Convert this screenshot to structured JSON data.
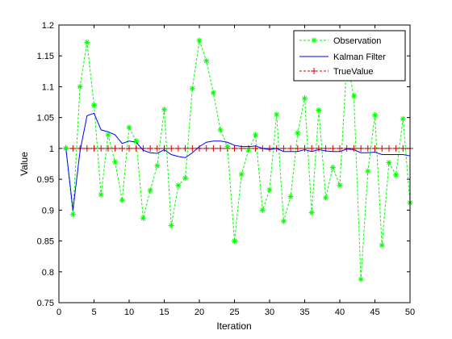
{
  "chart_data": {
    "type": "line",
    "xlabel": "Iteration",
    "ylabel": "Value",
    "xlim": [
      0,
      50
    ],
    "ylim": [
      0.75,
      1.2
    ],
    "xticks": [
      0,
      5,
      10,
      15,
      20,
      25,
      30,
      35,
      40,
      45,
      50
    ],
    "yticks": [
      0.75,
      0.8,
      0.85,
      0.9,
      0.95,
      1,
      1.05,
      1.1,
      1.15,
      1.2
    ],
    "ytick_labels": [
      "0.75",
      "0.8",
      "0.85",
      "0.9",
      "0.95",
      "1",
      "1.05",
      "1.1",
      "1.15",
      "1.2"
    ],
    "grid": false,
    "legend_position": "top-right",
    "x": [
      1,
      2,
      3,
      4,
      5,
      6,
      7,
      8,
      9,
      10,
      11,
      12,
      13,
      14,
      15,
      16,
      17,
      18,
      19,
      20,
      21,
      22,
      23,
      24,
      25,
      26,
      27,
      28,
      29,
      30,
      31,
      32,
      33,
      34,
      35,
      36,
      37,
      38,
      39,
      40,
      41,
      42,
      43,
      44,
      45,
      46,
      47,
      48,
      49,
      50
    ],
    "series": [
      {
        "name": "Observation",
        "color": "#00ff00",
        "style": "dashed-star",
        "values": [
          1.0,
          0.893,
          1.1,
          1.172,
          1.07,
          0.925,
          1.022,
          0.978,
          0.916,
          1.034,
          1.012,
          0.887,
          0.932,
          0.972,
          1.063,
          0.875,
          0.94,
          0.952,
          1.097,
          1.175,
          1.142,
          1.09,
          1.03,
          1.003,
          0.85,
          0.958,
          0.997,
          1.022,
          0.9,
          0.933,
          1.055,
          0.882,
          0.922,
          1.025,
          1.081,
          0.896,
          1.062,
          0.92,
          0.969,
          0.94,
          1.142,
          1.085,
          0.788,
          0.963,
          1.054,
          0.843,
          0.977,
          0.957,
          1.048,
          0.912
        ]
      },
      {
        "name": "Kalman Filter",
        "color": "#0000ff",
        "style": "solid",
        "values": [
          1.0,
          0.9,
          0.995,
          1.053,
          1.057,
          1.03,
          1.027,
          1.022,
          1.008,
          1.012,
          1.01,
          0.997,
          0.993,
          0.992,
          0.998,
          0.99,
          0.987,
          0.985,
          0.993,
          1.003,
          1.01,
          1.012,
          1.012,
          1.01,
          1.005,
          1.003,
          1.003,
          1.004,
          1.0,
          0.998,
          1.0,
          0.995,
          0.995,
          0.995,
          0.998,
          0.995,
          0.998,
          0.996,
          0.995,
          0.995,
          0.999,
          0.998,
          0.993,
          0.993,
          0.994,
          0.99,
          0.99,
          0.99,
          0.99,
          0.988
        ]
      },
      {
        "name": "TrueValue",
        "color": "#d00000",
        "style": "dashed-plus",
        "values": [
          1,
          1,
          1,
          1,
          1,
          1,
          1,
          1,
          1,
          1,
          1,
          1,
          1,
          1,
          1,
          1,
          1,
          1,
          1,
          1,
          1,
          1,
          1,
          1,
          1,
          1,
          1,
          1,
          1,
          1,
          1,
          1,
          1,
          1,
          1,
          1,
          1,
          1,
          1,
          1,
          1,
          1,
          1,
          1,
          1,
          1,
          1,
          1,
          1,
          1
        ]
      }
    ]
  }
}
